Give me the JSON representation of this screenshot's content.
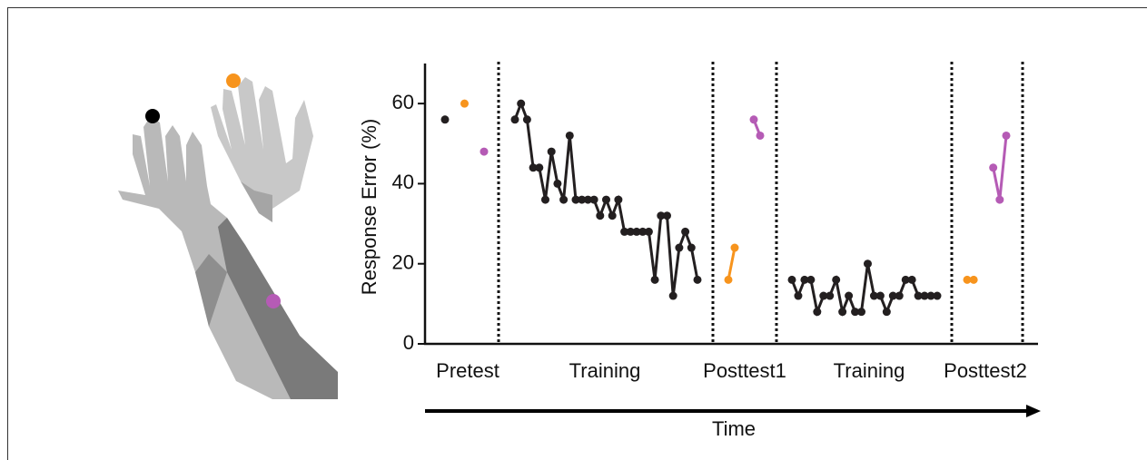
{
  "chart_data": {
    "type": "line",
    "ylabel": "Response Error (%)",
    "xlabel": "Time",
    "ylim": [
      0,
      70
    ],
    "yticks": [
      0,
      20,
      40,
      60
    ],
    "phases": [
      {
        "label": "Pretest",
        "series": [
          {
            "color": "#231f20",
            "values": [
              56
            ]
          },
          {
            "color": "#f7941d",
            "values": [
              60
            ]
          },
          {
            "color": "#b55bb5",
            "values": [
              48
            ]
          }
        ]
      },
      {
        "label": "Training",
        "series": [
          {
            "color": "#231f20",
            "values": [
              56,
              60,
              56,
              44,
              44,
              36,
              48,
              40,
              36,
              52,
              36,
              36,
              36,
              36,
              32,
              36,
              32,
              36,
              28,
              28,
              28,
              28,
              28,
              16,
              32,
              32,
              12,
              24,
              28,
              24,
              16
            ]
          }
        ]
      },
      {
        "label": "Posttest1",
        "series": [
          {
            "color": "#f7941d",
            "values": [
              16,
              24
            ]
          },
          {
            "color": "#b55bb5",
            "values": [
              56,
              52
            ]
          }
        ]
      },
      {
        "label": "Training",
        "series": [
          {
            "color": "#231f20",
            "values": [
              16,
              12,
              16,
              16,
              8,
              12,
              12,
              16,
              8,
              12,
              8,
              8,
              20,
              12,
              12,
              8,
              12,
              12,
              16,
              16,
              12,
              12,
              12,
              12
            ]
          }
        ]
      },
      {
        "label": "Posttest2",
        "series": [
          {
            "color": "#f7941d",
            "values": [
              16,
              16
            ]
          },
          {
            "color": "#b55bb5",
            "values": [
              44,
              36,
              52
            ]
          }
        ]
      }
    ]
  }
}
